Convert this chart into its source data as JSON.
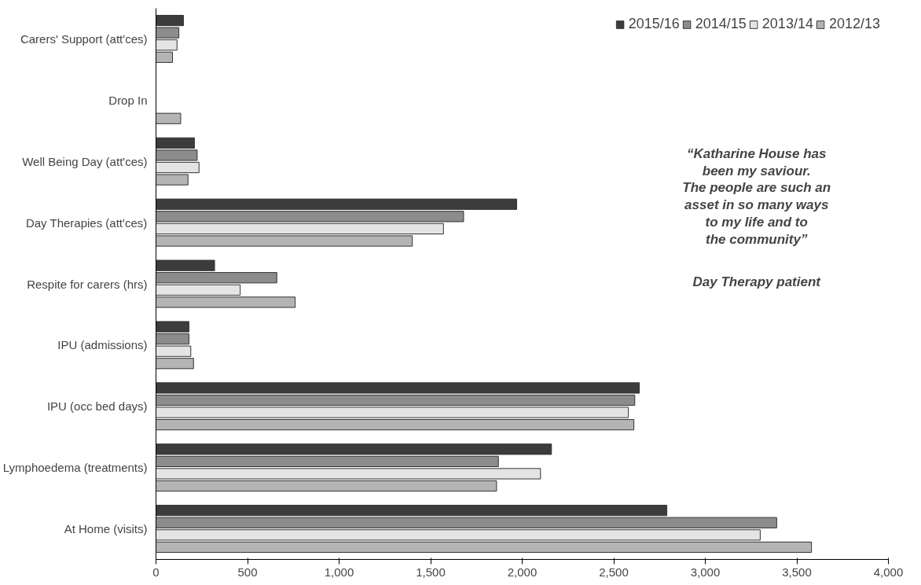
{
  "chart_data": {
    "type": "bar",
    "orientation": "horizontal",
    "categories": [
      "Carers' Support (att'ces)",
      "Drop In",
      "Well Being Day (att'ces)",
      "Day Therapies (att'ces)",
      "Respite for carers (hrs)",
      "IPU (admissions)",
      "IPU (occ bed days)",
      "Lymphoedema (treatments)",
      "At Home (visits)"
    ],
    "series": [
      {
        "name": "2015/16",
        "color": "#3c3c3c",
        "values": [
          150,
          null,
          210,
          1970,
          320,
          180,
          2640,
          2160,
          2790
        ]
      },
      {
        "name": "2014/15",
        "color": "#8c8c8c",
        "values": [
          125,
          null,
          225,
          1680,
          660,
          180,
          2615,
          1870,
          3390
        ]
      },
      {
        "name": "2013/14",
        "color": "#e4e4e4",
        "values": [
          115,
          null,
          235,
          1570,
          460,
          190,
          2580,
          2100,
          3300
        ]
      },
      {
        "name": "2012/13",
        "color": "#b4b4b4",
        "values": [
          90,
          135,
          175,
          1400,
          760,
          205,
          2610,
          1860,
          3580
        ]
      }
    ],
    "xlim": [
      0,
      4000
    ],
    "xticks": [
      0,
      500,
      {
        "value": 1000,
        "label": "1,000"
      },
      {
        "value": 1500,
        "label": "1,500"
      },
      {
        "value": 2000,
        "label": "2,000"
      },
      {
        "value": 2500,
        "label": "2,500"
      },
      {
        "value": 3000,
        "label": "3,000"
      },
      {
        "value": 3500,
        "label": "3,500"
      },
      {
        "value": 4000,
        "label": "4,000"
      }
    ],
    "grid": false,
    "legend": "top right",
    "annotations": [
      "“Katharine House has\nbeen my saviour.\nThe people are such an\nasset in so many ways\nto my life and to\nthe community”",
      "Day Therapy patient"
    ]
  }
}
